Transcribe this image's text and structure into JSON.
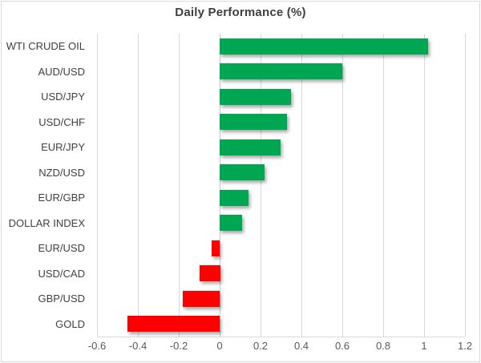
{
  "chart_data": {
    "type": "bar",
    "orientation": "horizontal",
    "title": "Daily Performance (%)",
    "categories": [
      "WTI CRUDE OIL",
      "AUD/USD",
      "USD/JPY",
      "USD/CHF",
      "EUR/JPY",
      "NZD/USD",
      "EUR/GBP",
      "DOLLAR INDEX",
      "EUR/USD",
      "USD/CAD",
      "GBP/USD",
      "GOLD"
    ],
    "values": [
      1.02,
      0.6,
      0.35,
      0.33,
      0.3,
      0.22,
      0.14,
      0.11,
      -0.04,
      -0.1,
      -0.18,
      -0.45
    ],
    "xlabel": "",
    "ylabel": "",
    "xlim": [
      -0.6,
      1.2
    ],
    "x_ticks": [
      -0.6,
      -0.4,
      -0.2,
      0,
      0.2,
      0.4,
      0.6,
      0.8,
      1,
      1.2
    ],
    "x_tick_labels": [
      "-0.6",
      "-0.4",
      "-0.2",
      "0",
      "0.2",
      "0.4",
      "0.6",
      "0.8",
      "1",
      "1.2"
    ],
    "grid": true,
    "legend": false,
    "colors": {
      "positive": "#00a651",
      "negative": "#ff0000",
      "gridline": "#d9d9d9",
      "title_text": "#3f3f3f",
      "label_text": "#404040",
      "tick_text": "#595959"
    }
  }
}
